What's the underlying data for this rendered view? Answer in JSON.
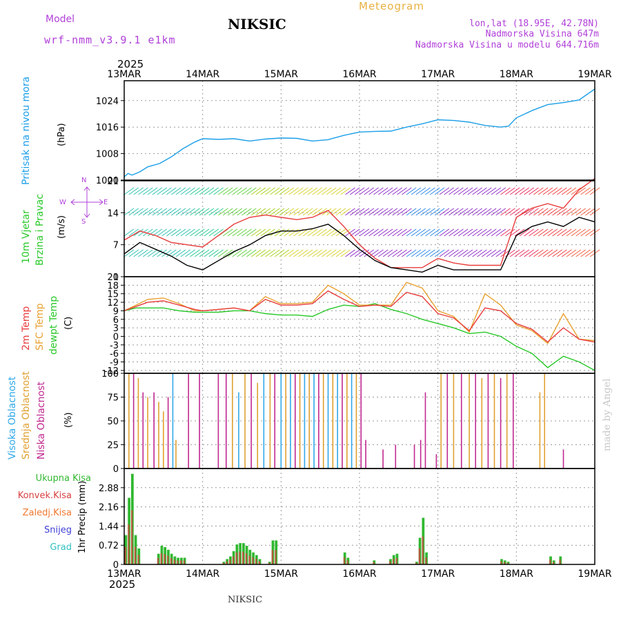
{
  "header": {
    "model_label": "Model",
    "model_name": "wrf-nmm_v3.9.1 e1km",
    "station": "NIKSIC",
    "meteogram": "Meteogram",
    "lonlat": "lon,lat (18.95E, 42.78N)",
    "elev": "Nadmorska Visina 647m",
    "elev_model": "Nadmorska Visina u modelu 644.716m",
    "year_top": "2025",
    "year_bottom": "2025",
    "footer": "NIKSIC",
    "watermark": "made by Angel"
  },
  "x_ticks": [
    "13MAR",
    "14MAR",
    "15MAR",
    "16MAR",
    "17MAR",
    "18MAR",
    "19MAR"
  ],
  "panel_labels": {
    "pressure": "Pritisak na nivou mora",
    "pressure_unit": "(hPa)",
    "wind_a": "10m Vjetar",
    "wind_b": "Brzina i Pravac",
    "wind_unit": "(m/s)",
    "compass_n": "N",
    "compass_s": "S",
    "compass_w": "W",
    "compass_e": "E",
    "temp_2m": "2m Temp",
    "temp_sfc": "SFC Temp",
    "temp_dew": "dewpt Temp",
    "temp_unit": "(C)",
    "cloud_high": "Visoka Oblacnost",
    "cloud_mid": "Srednja Oblacnost",
    "cloud_low": "Niska Oblacnost",
    "cloud_unit": "(%)",
    "precip_axis": "1hr Precip (mm)",
    "legend_total": "Ukupna Kisa",
    "legend_conv": "Konvek.Kisa",
    "legend_frz": "Zaledj.Kisa",
    "legend_snow": "Snijeg",
    "legend_hail": "Grad"
  },
  "colors": {
    "pressure": "#1a9ee8",
    "temp2m": "#e83c3c",
    "sfc": "#e8a030",
    "dew": "#28c828",
    "cloud_high": "#30a8e8",
    "cloud_mid": "#e0a030",
    "cloud_low": "#c02890",
    "precip_total": "#30b830",
    "precip_conv": "#d84040",
    "precip_frz": "#f07830",
    "precip_snow": "#4040d8",
    "precip_hail": "#30c0c0",
    "wind_speed": "#000000",
    "wind_gust": "#e83c3c"
  },
  "chart_data": [
    {
      "type": "line",
      "name": "pressure",
      "ylim": [
        1000,
        1030
      ],
      "yticks": [
        1000,
        1008,
        1016,
        1024
      ],
      "x_days": [
        0,
        0.05,
        0.1,
        0.2,
        0.3,
        0.45,
        0.6,
        0.75,
        0.9,
        1.0,
        1.2,
        1.4,
        1.6,
        1.8,
        2.0,
        2.2,
        2.4,
        2.6,
        2.8,
        3.0,
        3.2,
        3.4,
        3.6,
        3.8,
        4.0,
        4.2,
        4.4,
        4.6,
        4.8,
        4.9,
        5.0,
        5.2,
        5.4,
        5.6,
        5.8,
        6.0
      ],
      "series": [
        {
          "values": [
            1001,
            1002,
            1001.5,
            1002.5,
            1004,
            1005,
            1007,
            1009.5,
            1011.5,
            1012.5,
            1012.3,
            1012.5,
            1011.8,
            1012.4,
            1012.7,
            1012.6,
            1011.8,
            1012.2,
            1013.5,
            1014.5,
            1014.7,
            1014.8,
            1016,
            1017,
            1018.2,
            1018.0,
            1017.5,
            1016.5,
            1016.0,
            1016.3,
            1018.8,
            1021,
            1022.8,
            1023.4,
            1024.2,
            1027.5
          ]
        }
      ]
    },
    {
      "type": "line",
      "name": "wind",
      "ylim": [
        0,
        21
      ],
      "yticks": [
        0,
        7,
        14,
        21
      ],
      "x_days": [
        0,
        0.2,
        0.4,
        0.6,
        0.8,
        1.0,
        1.2,
        1.4,
        1.6,
        1.8,
        2.0,
        2.2,
        2.4,
        2.6,
        2.8,
        3.0,
        3.2,
        3.4,
        3.6,
        3.8,
        4.0,
        4.2,
        4.4,
        4.6,
        4.8,
        5.0,
        5.2,
        5.4,
        5.6,
        5.8,
        6.0
      ],
      "series": [
        {
          "values": [
            5,
            7.5,
            6,
            4.5,
            2.5,
            1.5,
            3.5,
            5.5,
            7,
            9,
            10,
            10,
            10.5,
            11.5,
            9,
            6,
            3.5,
            2,
            1.5,
            1,
            2.5,
            1.5,
            1.5,
            1.5,
            1.5,
            9,
            11,
            12,
            11,
            13,
            12
          ]
        },
        {
          "values": [
            8,
            10,
            9,
            7.5,
            7,
            6.5,
            9,
            11.5,
            13,
            13.5,
            13,
            12.5,
            13,
            14.5,
            11,
            7,
            4,
            2,
            2,
            2,
            4,
            3,
            2.5,
            2.5,
            2.5,
            13,
            15,
            16,
            15,
            19,
            21.5
          ]
        }
      ]
    },
    {
      "type": "line",
      "name": "temperature",
      "ylim": [
        -13,
        21
      ],
      "yticks": [
        -12,
        -9,
        -6,
        -3,
        0,
        3,
        6,
        9,
        12,
        15,
        18,
        21
      ],
      "x_days": [
        0,
        0.15,
        0.3,
        0.5,
        0.7,
        0.9,
        1.0,
        1.2,
        1.4,
        1.6,
        1.8,
        2.0,
        2.2,
        2.4,
        2.6,
        2.8,
        3.0,
        3.2,
        3.4,
        3.6,
        3.8,
        4.0,
        4.2,
        4.4,
        4.6,
        4.8,
        5.0,
        5.2,
        5.4,
        5.6,
        5.8,
        6.0
      ],
      "series": [
        {
          "values": [
            9,
            10.5,
            12,
            12.5,
            11,
            9.5,
            9,
            9.5,
            10,
            9,
            13,
            11,
            11,
            11.5,
            16,
            13,
            10.5,
            11,
            10.5,
            15.5,
            14,
            8,
            6.5,
            2,
            10,
            9,
            4.5,
            2.5,
            -2,
            3,
            -1,
            -2
          ]
        },
        {
          "values": [
            9,
            11,
            13,
            13.5,
            11.5,
            9,
            9,
            9.5,
            10,
            9,
            14,
            11.5,
            11.5,
            12,
            18,
            15,
            11,
            11,
            11,
            19,
            17,
            9,
            7,
            1.5,
            15,
            11,
            4,
            2,
            -2.5,
            8,
            -1,
            -1.5
          ]
        },
        {
          "values": [
            9,
            10,
            10,
            10,
            9,
            8.5,
            8.5,
            8.5,
            9,
            9,
            8,
            7.5,
            7.5,
            7,
            9.5,
            11,
            10.5,
            11.5,
            9.5,
            8,
            6,
            4.5,
            3,
            1,
            1.5,
            0,
            -3.5,
            -6,
            -11,
            -7,
            -9,
            -12
          ]
        }
      ]
    },
    {
      "type": "bar",
      "name": "cloud",
      "ylim": [
        0,
        100
      ],
      "yticks": [
        0,
        25,
        50,
        75,
        100
      ],
      "hour_step": 1,
      "series": [
        {
          "values": [
            0,
            0,
            0,
            0,
            0,
            0,
            0,
            0,
            0,
            0,
            0,
            0,
            0,
            0,
            0,
            0,
            0,
            0,
            0,
            0,
            0,
            0,
            0,
            0,
            0,
            0,
            0,
            0,
            0,
            0,
            0,
            0,
            0,
            0,
            0,
            0,
            0,
            0,
            0,
            0,
            0,
            0,
            0,
            0,
            0,
            0,
            0,
            0,
            0,
            0,
            0,
            0,
            0,
            0,
            0,
            0,
            0,
            0,
            0,
            0,
            0,
            0,
            0,
            0,
            0,
            0,
            0,
            0,
            0,
            0,
            0,
            0,
            0,
            0,
            0,
            0,
            0,
            0,
            0,
            0,
            0,
            0,
            0,
            0,
            0,
            0,
            0,
            0,
            0,
            0,
            0,
            0,
            0,
            0,
            0,
            0,
            0,
            0,
            0,
            0,
            0,
            0,
            0,
            0,
            0,
            0,
            0,
            0,
            0,
            0,
            0,
            0,
            0,
            0,
            0,
            0,
            0,
            0,
            0,
            0,
            0,
            0,
            0,
            0,
            0,
            0,
            0,
            0,
            0,
            0,
            0,
            0,
            0,
            0,
            0,
            0,
            0,
            0,
            0,
            0,
            0,
            0,
            0,
            0,
            0
          ]
        }
      ]
    },
    {
      "type": "bar",
      "name": "precip",
      "ylim": [
        0,
        3.6
      ],
      "yticks": [
        0,
        0.72,
        1.44,
        2.16,
        2.88
      ],
      "hour_step": 1,
      "series": [
        {
          "values": [
            1.1,
            2.5,
            3.4,
            1.1,
            0.6,
            0,
            0,
            0,
            0,
            0,
            0.4,
            0.7,
            0.65,
            0.55,
            0.4,
            0.3,
            0.25,
            0.25,
            0.25,
            0,
            0,
            0,
            0,
            0,
            0,
            0,
            0,
            0,
            0,
            0,
            0.1,
            0.2,
            0.3,
            0.5,
            0.75,
            0.8,
            0.8,
            0.7,
            0.55,
            0.45,
            0.35,
            0.2,
            0,
            0,
            0.1,
            0.9,
            0.9,
            0,
            0,
            0,
            0,
            0,
            0,
            0,
            0,
            0,
            0,
            0,
            0,
            0,
            0,
            0,
            0,
            0,
            0,
            0,
            0,
            0.45,
            0.25,
            0,
            0,
            0,
            0,
            0,
            0,
            0,
            0.15,
            0,
            0,
            0,
            0,
            0.2,
            0.35,
            0.4,
            0,
            0,
            0,
            0,
            0,
            0.1,
            1.0,
            1.75,
            0.45,
            0,
            0,
            0,
            0,
            0,
            0,
            0,
            0,
            0,
            0,
            0,
            0,
            0,
            0,
            0,
            0,
            0,
            0,
            0,
            0,
            0,
            0,
            0.2,
            0.15,
            0.1,
            0,
            0,
            0,
            0,
            0,
            0,
            0,
            0,
            0,
            0,
            0,
            0,
            0.3,
            0.15,
            0,
            0.3,
            0,
            0,
            0,
            0,
            0,
            0,
            0,
            0,
            0,
            0,
            0,
            0,
            0,
            0,
            0
          ]
        }
      ]
    }
  ]
}
